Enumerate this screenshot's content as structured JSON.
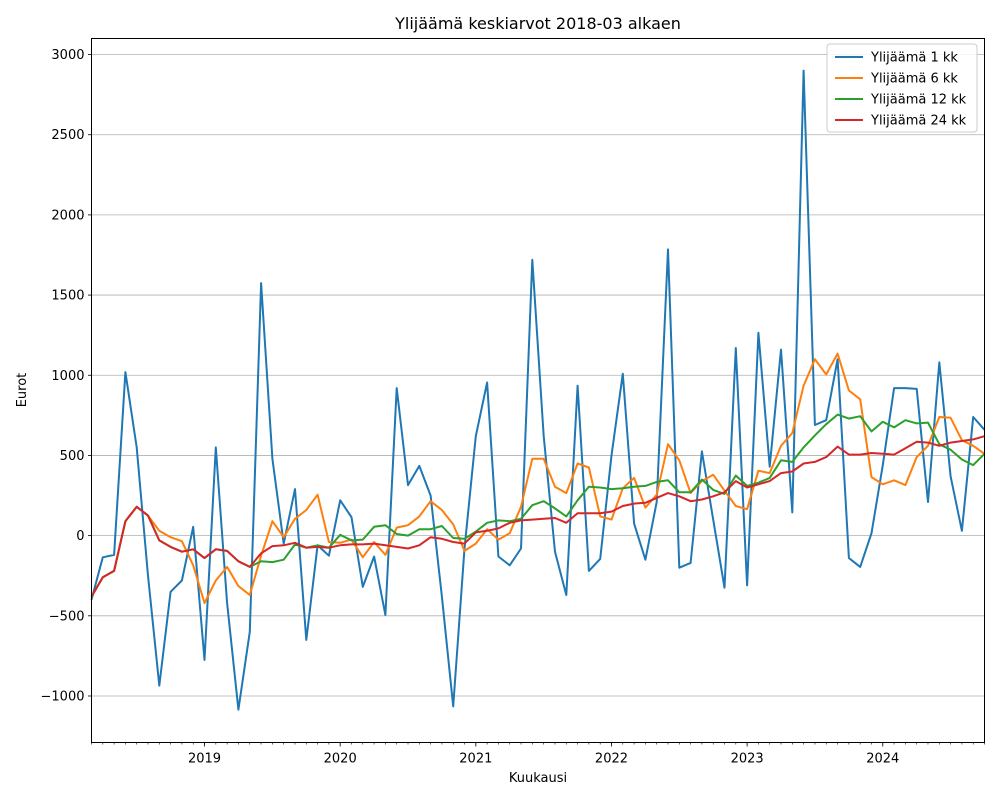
{
  "chart_data": {
    "type": "line",
    "title": "Ylijäämä keskiarvot 2018-03 alkaen",
    "xlabel": "Kuukausi",
    "ylabel": "Eurot",
    "ylim": [
      -1290,
      3100
    ],
    "yticks": [
      -1000,
      -500,
      0,
      500,
      1000,
      1500,
      2000,
      2500,
      3000
    ],
    "ytick_labels": [
      "−1000",
      "−500",
      "0",
      "500",
      "1000",
      "1500",
      "2000",
      "2500",
      "3000"
    ],
    "x_start": "2018-03",
    "x_range_index": [
      0,
      79
    ],
    "xticks": [
      {
        "label": "2019",
        "index": 10
      },
      {
        "label": "2020",
        "index": 22
      },
      {
        "label": "2021",
        "index": 34
      },
      {
        "label": "2022",
        "index": 46
      },
      {
        "label": "2023",
        "index": 58
      },
      {
        "label": "2024",
        "index": 70
      }
    ],
    "grid": "horizontal",
    "legend_position": "top-right",
    "series": [
      {
        "name": "Ylijäämä 1 kk",
        "color": "#1f77b4",
        "values": [
          -400,
          -135,
          -120,
          1020,
          550,
          -250,
          -935,
          -350,
          -280,
          55,
          -775,
          550,
          -420,
          -1085,
          -600,
          1575,
          480,
          -50,
          290,
          -650,
          -60,
          -125,
          220,
          115,
          -320,
          -130,
          -495,
          920,
          315,
          435,
          250,
          -380,
          -1065,
          -80,
          620,
          955,
          -130,
          -185,
          -80,
          1720,
          620,
          -100,
          -370,
          935,
          -220,
          -145,
          500,
          1010,
          75,
          -150,
          210,
          1785,
          -200,
          -170,
          525,
          100,
          -325,
          1170,
          -310,
          1265,
          430,
          1160,
          145,
          2900,
          690,
          720,
          1100,
          -140,
          -195,
          15,
          440,
          920,
          920,
          915,
          210,
          1080,
          370,
          30,
          740,
          660
        ]
      },
      {
        "name": "Ylijäämä 6 kk",
        "color": "#ff7f0e",
        "values": [
          -380,
          -260,
          -220,
          90,
          180,
          125,
          30,
          -10,
          -35,
          -185,
          -420,
          -280,
          -195,
          -315,
          -370,
          -125,
          90,
          -10,
          105,
          160,
          255,
          -40,
          -45,
          -25,
          -135,
          -40,
          -120,
          50,
          65,
          120,
          215,
          160,
          70,
          -95,
          -50,
          40,
          -25,
          15,
          180,
          480,
          480,
          305,
          265,
          450,
          425,
          120,
          100,
          295,
          360,
          175,
          255,
          570,
          470,
          265,
          340,
          380,
          280,
          185,
          165,
          405,
          390,
          560,
          640,
          935,
          1100,
          1005,
          1135,
          905,
          850,
          365,
          320,
          345,
          315,
          490,
          560,
          740,
          735,
          595,
          560,
          510
        ]
      },
      {
        "name": "Ylijäämä 12 kk",
        "color": "#2ca02c",
        "values": [
          -380,
          -260,
          -220,
          90,
          180,
          125,
          -30,
          -70,
          -100,
          -85,
          -140,
          -85,
          -95,
          -160,
          -195,
          -160,
          -165,
          -150,
          -55,
          -75,
          -60,
          -75,
          5,
          -30,
          -25,
          55,
          65,
          10,
          0,
          40,
          40,
          60,
          -15,
          -20,
          25,
          80,
          95,
          90,
          105,
          190,
          215,
          170,
          120,
          220,
          305,
          300,
          290,
          295,
          305,
          310,
          335,
          345,
          270,
          270,
          350,
          285,
          260,
          375,
          310,
          330,
          360,
          470,
          460,
          550,
          625,
          695,
          755,
          730,
          745,
          650,
          710,
          675,
          720,
          700,
          705,
          570,
          535,
          475,
          440,
          510
        ]
      },
      {
        "name": "Ylijäämä 24 kk",
        "color": "#d62728",
        "values": [
          -380,
          -260,
          -220,
          90,
          180,
          125,
          -30,
          -70,
          -100,
          -85,
          -140,
          -85,
          -95,
          -160,
          -195,
          -110,
          -65,
          -60,
          -45,
          -75,
          -70,
          -75,
          -60,
          -55,
          -55,
          -50,
          -60,
          -70,
          -80,
          -60,
          -10,
          -20,
          -40,
          -50,
          20,
          30,
          45,
          80,
          95,
          100,
          105,
          110,
          80,
          140,
          140,
          140,
          150,
          185,
          200,
          205,
          235,
          265,
          245,
          215,
          225,
          245,
          270,
          340,
          300,
          320,
          340,
          390,
          400,
          450,
          460,
          490,
          555,
          505,
          505,
          515,
          510,
          505,
          545,
          585,
          580,
          560,
          580,
          590,
          600,
          620
        ]
      }
    ]
  }
}
